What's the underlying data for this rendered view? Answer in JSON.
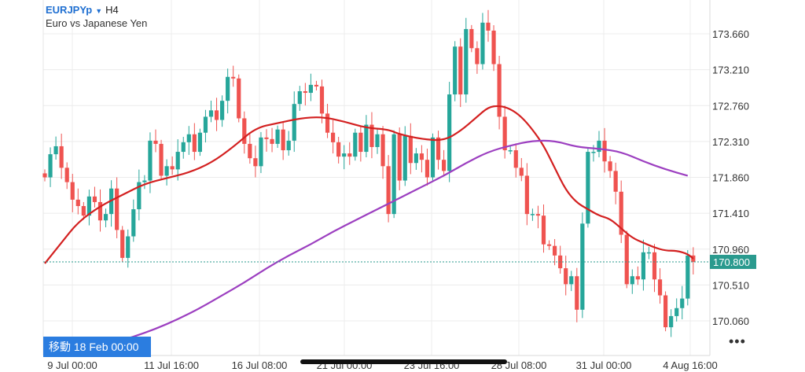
{
  "header": {
    "symbol": "EURJPYp",
    "timeframe": "H4",
    "description": "Euro vs Japanese Yen"
  },
  "move_button": "移動 18 Feb 00:00",
  "more_icon": "ellipsis-icon",
  "colors": {
    "bull": "#26a69a",
    "bear": "#ef5350",
    "ma_fast": "#d32020",
    "ma_slow": "#9c3fc0",
    "price_line": "#2a9a8e"
  },
  "chart_data": {
    "type": "candlestick",
    "title": "EURJPYp H4",
    "y_ticks": [
      "173.660",
      "173.210",
      "172.760",
      "172.310",
      "171.860",
      "171.410",
      "170.960",
      "170.510",
      "170.060"
    ],
    "x_ticks": [
      "9 Jul 00:00",
      "11 Jul 16:00",
      "16 Jul 08:00",
      "21 Jul 00:00",
      "23 Jul 16:00",
      "28 Jul 08:00",
      "31 Jul 00:00",
      "4 Aug 16:00"
    ],
    "ylim": [
      169.75,
      174.05
    ],
    "current_price": "170.800",
    "series": [
      {
        "name": "Price",
        "type": "candlestick",
        "close": [
          171.86,
          172.15,
          172.25,
          171.98,
          171.8,
          171.58,
          171.5,
          171.38,
          171.62,
          171.55,
          171.32,
          171.4,
          171.72,
          171.2,
          170.85,
          171.12,
          171.46,
          171.8,
          171.82,
          172.32,
          172.28,
          171.88,
          172.0,
          171.96,
          172.18,
          172.3,
          172.4,
          172.18,
          172.42,
          172.62,
          172.7,
          172.58,
          172.82,
          173.12,
          173.1,
          172.6,
          172.28,
          172.1,
          172.0,
          172.36,
          172.34,
          172.28,
          172.46,
          172.2,
          172.32,
          172.78,
          172.94,
          172.92,
          173.02,
          173.0,
          172.66,
          172.42,
          172.3,
          172.12,
          172.16,
          172.12,
          172.42,
          172.18,
          172.52,
          172.24,
          172.4,
          172.0,
          171.4,
          172.4,
          171.82,
          172.38,
          172.04,
          172.16,
          172.08,
          171.86,
          172.36,
          172.08,
          171.94,
          172.9,
          173.5,
          172.9,
          173.72,
          173.48,
          173.28,
          173.8,
          173.7,
          173.28,
          172.62,
          172.2,
          172.2,
          171.98,
          171.88,
          171.4,
          171.4,
          171.38,
          171.02,
          171.0,
          170.88,
          170.72,
          170.52,
          170.62,
          170.2,
          171.28,
          172.18,
          172.18,
          172.32,
          172.06,
          171.94,
          171.68,
          171.14,
          170.52,
          170.62,
          170.58,
          170.92,
          170.92,
          170.58,
          170.38,
          169.98,
          170.12,
          170.22,
          170.34,
          170.88,
          170.8
        ]
      },
      {
        "name": "MA fast",
        "type": "line",
        "x": [
          0,
          3,
          6,
          10,
          14,
          18,
          22,
          26,
          30,
          34,
          38,
          42,
          46,
          50,
          54,
          58,
          62,
          64,
          68,
          72,
          75,
          78,
          80,
          82,
          84,
          86,
          88,
          90,
          92,
          94,
          96,
          98,
          100,
          102,
          104,
          106,
          108,
          110,
          112,
          114,
          116,
          117
        ],
        "values": [
          170.78,
          171.04,
          171.3,
          171.5,
          171.64,
          171.78,
          171.85,
          171.92,
          172.04,
          172.24,
          172.48,
          172.54,
          172.6,
          172.62,
          172.56,
          172.48,
          172.46,
          172.4,
          172.34,
          172.32,
          172.44,
          172.62,
          172.74,
          172.76,
          172.72,
          172.62,
          172.46,
          172.26,
          171.98,
          171.7,
          171.54,
          171.46,
          171.38,
          171.34,
          171.22,
          171.1,
          171.04,
          170.98,
          170.94,
          170.94,
          170.9,
          170.84
        ]
      },
      {
        "name": "MA slow",
        "type": "line",
        "x": [
          12,
          16,
          20,
          24,
          28,
          32,
          36,
          40,
          44,
          48,
          52,
          56,
          60,
          64,
          68,
          72,
          76,
          80,
          84,
          88,
          92,
          96,
          100,
          104,
          108,
          112,
          116
        ],
        "values": [
          169.78,
          169.86,
          169.96,
          170.08,
          170.22,
          170.38,
          170.54,
          170.72,
          170.88,
          171.02,
          171.18,
          171.32,
          171.46,
          171.6,
          171.74,
          171.88,
          172.04,
          172.18,
          172.26,
          172.32,
          172.32,
          172.24,
          172.22,
          172.18,
          172.06,
          171.96,
          171.88
        ]
      }
    ]
  }
}
